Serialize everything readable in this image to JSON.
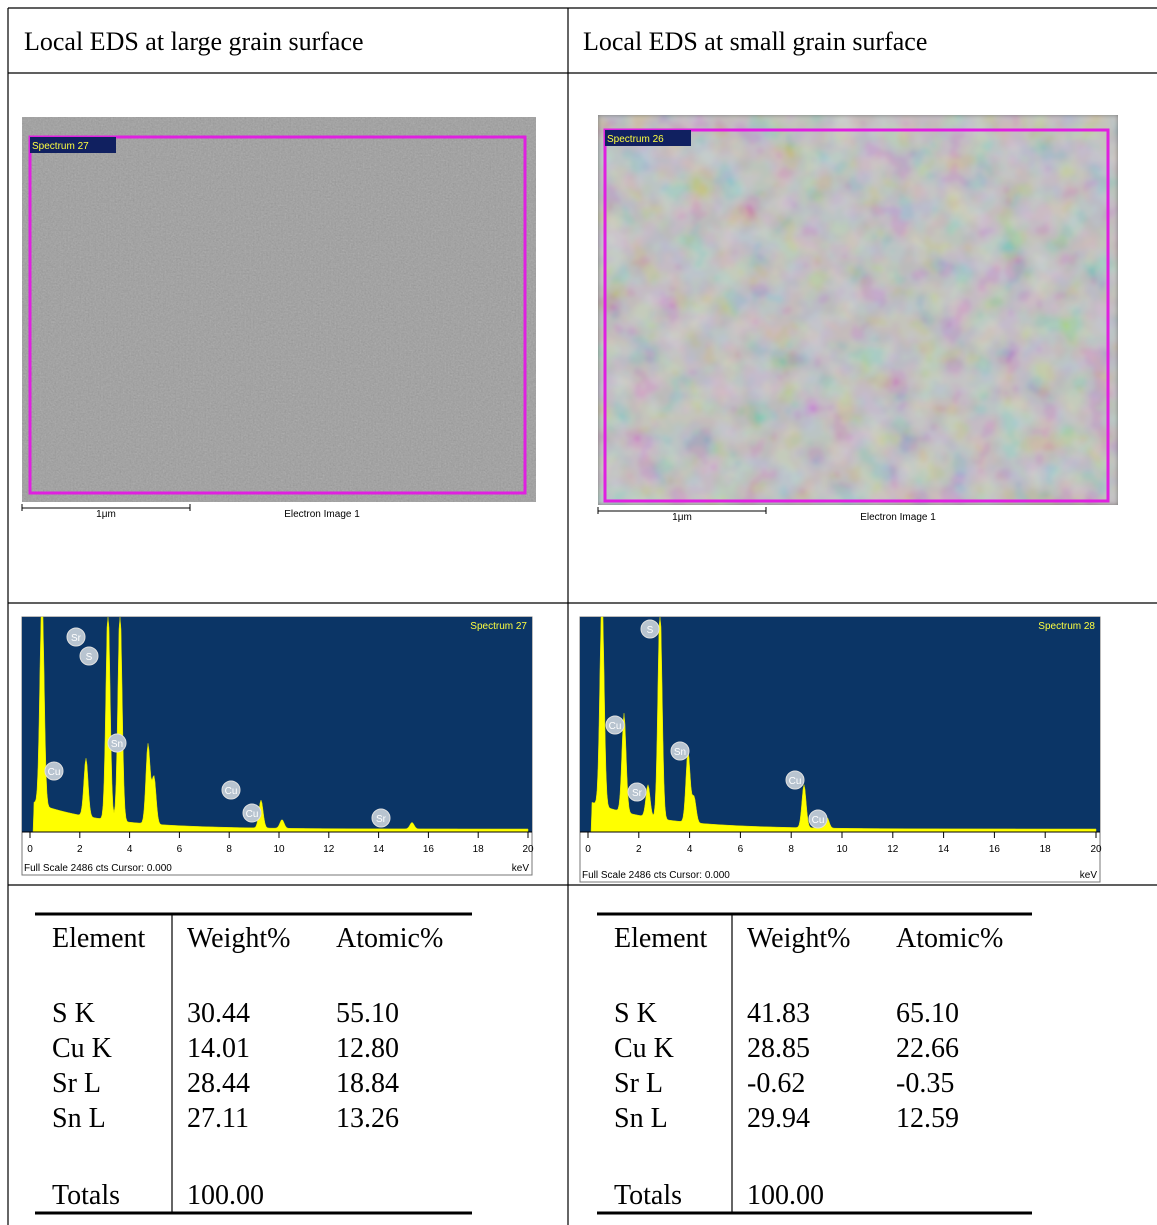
{
  "header": [
    "Local EDS at large grain surface",
    "Local EDS at small grain surface"
  ],
  "panels": [
    {
      "image": {
        "label": "Spectrum 27",
        "scale": "1μm",
        "caption": "Electron Image 1"
      },
      "spectrum": {
        "title": "Spectrum 27",
        "peak_labels": [
          "Sr",
          "S",
          "Sn",
          "Cu",
          "Cu",
          "Cu",
          "Sr"
        ],
        "xlim": [
          0,
          20
        ],
        "xticks": [
          0,
          2,
          4,
          6,
          8,
          10,
          12,
          14,
          16,
          18,
          20
        ],
        "x_unit": "keV",
        "footer": "Full Scale 2486 cts Cursor: 0.000"
      },
      "table": {
        "columns": [
          "Element",
          "Weight%",
          "Atomic%"
        ],
        "rows": [
          [
            "S K",
            "30.44",
            "55.10"
          ],
          [
            "Cu K",
            "14.01",
            "12.80"
          ],
          [
            "Sr L",
            "28.44",
            "18.84"
          ],
          [
            "Sn L",
            "27.11",
            "13.26"
          ]
        ],
        "totals": [
          "Totals",
          "100.00"
        ]
      }
    },
    {
      "image": {
        "label": "Spectrum 26",
        "scale": "1μm",
        "caption": "Electron Image 1"
      },
      "spectrum": {
        "title": "Spectrum 28",
        "peak_labels": [
          "S",
          "Cu",
          "Sr",
          "Sn",
          "Cu",
          "Cu"
        ],
        "xlim": [
          0,
          20
        ],
        "xticks": [
          0,
          2,
          4,
          6,
          8,
          10,
          12,
          14,
          16,
          18,
          20
        ],
        "x_unit": "keV",
        "footer": "Full Scale 2486 cts Cursor: 0.000"
      },
      "table": {
        "columns": [
          "Element",
          "Weight%",
          "Atomic%"
        ],
        "rows": [
          [
            "S K",
            "41.83",
            "65.10"
          ],
          [
            "Cu K",
            "28.85",
            "22.66"
          ],
          [
            "Sr L",
            "-0.62",
            "-0.35"
          ],
          [
            "Sn L",
            "29.94",
            "12.59"
          ]
        ],
        "totals": [
          "Totals",
          "100.00"
        ]
      }
    }
  ]
}
